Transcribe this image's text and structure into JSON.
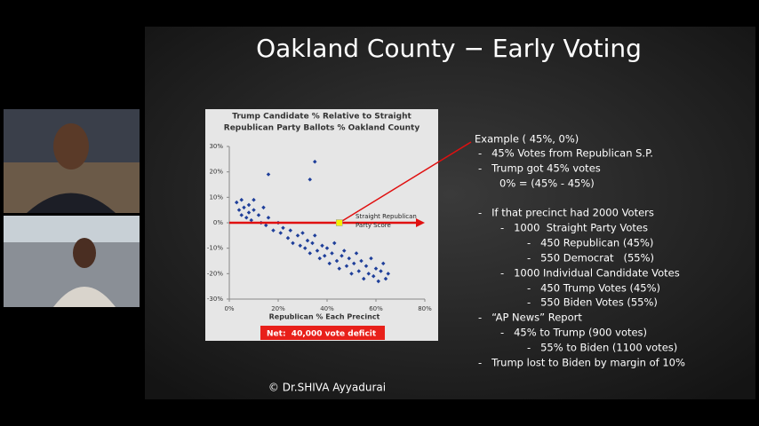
{
  "slide": {
    "title": "Oakland County − Early Voting",
    "copyright": "© Dr.SHIVA Ayyadurai",
    "notes": [
      "Example ( 45%, 0%)",
      "-   45% Votes from Republican S.P.",
      "-   Trump got 45% votes",
      "0% = (45% - 45%)",
      "-   If that precinct had 2000 Voters",
      "-   1000  Straight Party Votes",
      "-   450 Republican (45%)",
      "-   550 Democrat   (55%)",
      "-   1000 Individual Candidate Votes",
      "-   450 Trump Votes (45%)",
      "-   550 Biden Votes (55%)",
      "-   “AP News” Report",
      "-   45% to Trump (900 votes)",
      "-   55% to Biden (1100 votes)",
      "-   Trump lost to Biden by margin of 10%"
    ],
    "chart": {
      "type": "scatter",
      "title": [
        "Trump Candidate % Relative to Straight",
        "Republican Party Ballots % Oakland County"
      ],
      "x_label": "Republican % Each Precinct",
      "annotation": "Straight Republican Party Score",
      "footer": "Net:  40,000 vote deficit",
      "color": "#1f3f9a",
      "xlim": [
        0,
        80
      ],
      "xticks": [
        {
          "value": 0,
          "label": "0%"
        },
        {
          "value": 20,
          "label": "20%"
        },
        {
          "value": 40,
          "label": "40%"
        },
        {
          "value": 60,
          "label": "60%"
        },
        {
          "value": 80,
          "label": "80%"
        }
      ],
      "ylim": [
        -30,
        30
      ],
      "yticks": [
        {
          "value": 30,
          "label": "30%"
        },
        {
          "value": 20,
          "label": "20%"
        },
        {
          "value": 10,
          "label": "10%"
        },
        {
          "value": 0,
          "label": "0%"
        },
        {
          "value": -10,
          "label": "-10%"
        },
        {
          "value": -20,
          "label": "-20%"
        },
        {
          "value": -30,
          "label": "-30%"
        }
      ],
      "highlight": {
        "x": 45,
        "y": 0
      },
      "x": [
        3,
        4,
        5,
        5,
        6,
        7,
        8,
        8,
        9,
        10,
        12,
        13,
        14,
        15,
        16,
        18,
        20,
        21,
        22,
        24,
        25,
        26,
        28,
        29,
        30,
        31,
        32,
        33,
        34,
        35,
        36,
        37,
        38,
        39,
        40,
        41,
        42,
        43,
        44,
        45,
        46,
        47,
        48,
        49,
        50,
        51,
        52,
        53,
        54,
        55,
        56,
        57,
        58,
        59,
        60,
        61,
        62,
        63,
        64,
        65,
        35,
        33,
        16,
        10
      ],
      "y": [
        8,
        5,
        3,
        9,
        6,
        2,
        7,
        4,
        1,
        5,
        3,
        0,
        6,
        -1,
        2,
        -3,
        0,
        -4,
        -2,
        -6,
        -3,
        -8,
        -5,
        -9,
        -4,
        -10,
        -7,
        -12,
        -8,
        -5,
        -11,
        -14,
        -9,
        -13,
        -10,
        -16,
        -12,
        -8,
        -15,
        -18,
        -13,
        -11,
        -17,
        -14,
        -20,
        -16,
        -12,
        -19,
        -15,
        -22,
        -17,
        -20,
        -14,
        -21,
        -18,
        -23,
        -19,
        -16,
        -22,
        -20,
        24,
        17,
        19,
        9
      ]
    }
  }
}
